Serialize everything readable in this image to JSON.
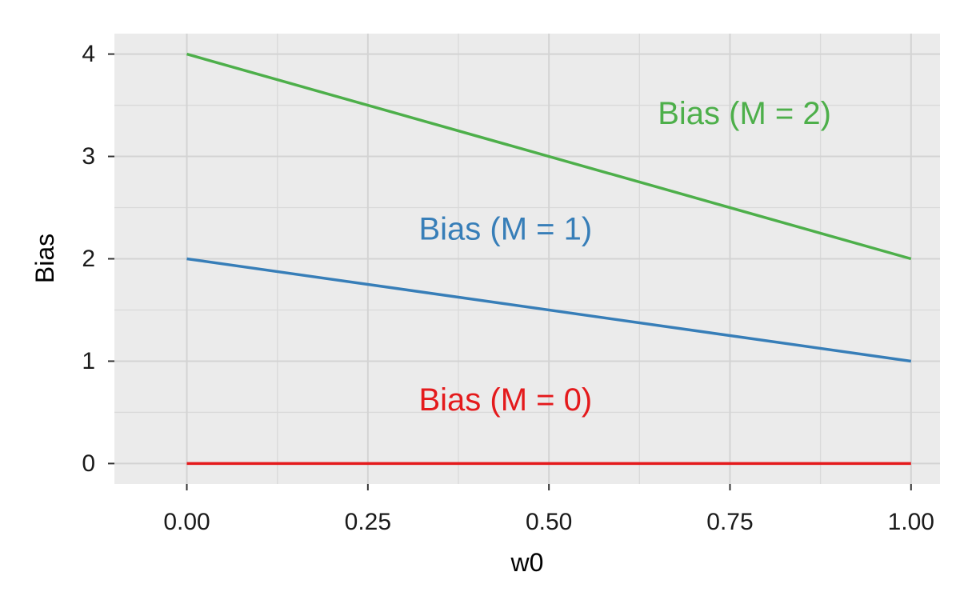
{
  "chart_data": {
    "type": "line",
    "title": "",
    "xlabel": "w0",
    "ylabel": "Bias",
    "xlim": [
      -0.1,
      1.04
    ],
    "ylim": [
      -0.2,
      4.2
    ],
    "x_ticks": [
      0,
      0.25,
      0.5,
      0.75,
      1
    ],
    "x_tick_labels": [
      "0.00",
      "0.25",
      "0.50",
      "0.75",
      "1.00"
    ],
    "y_ticks": [
      0,
      1,
      2,
      3,
      4
    ],
    "y_tick_labels": [
      "0",
      "1",
      "2",
      "3",
      "4"
    ],
    "grid": true,
    "legend": "none",
    "series": [
      {
        "name": "Bias (M = 0)",
        "color": "#e41a1c",
        "x": [
          0,
          1
        ],
        "values": [
          0,
          0
        ]
      },
      {
        "name": "Bias (M = 1)",
        "color": "#377eb8",
        "x": [
          0,
          1
        ],
        "values": [
          2,
          1
        ]
      },
      {
        "name": "Bias (M = 2)",
        "color": "#4daf4a",
        "x": [
          0,
          1
        ],
        "values": [
          4,
          2
        ]
      }
    ],
    "annotations": [
      {
        "text": "Bias (M = 0)",
        "x": 0.44,
        "y": 0.6,
        "color": "#e41a1c"
      },
      {
        "text": "Bias (M = 1)",
        "x": 0.44,
        "y": 2.27,
        "color": "#377eb8"
      },
      {
        "text": "Bias (M = 2)",
        "x": 0.77,
        "y": 3.4,
        "color": "#4daf4a"
      }
    ]
  }
}
